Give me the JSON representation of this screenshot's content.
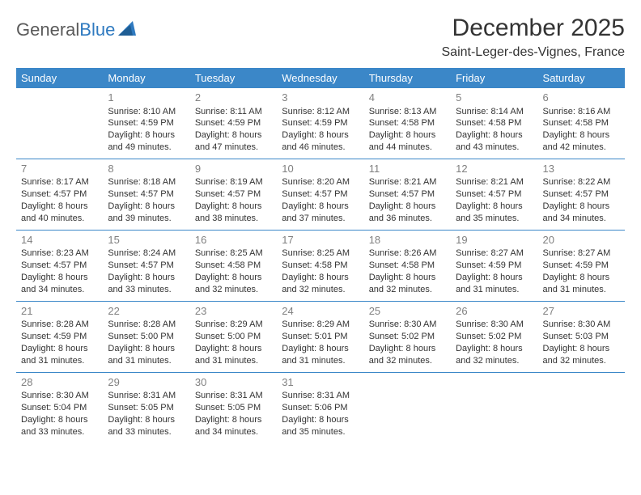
{
  "logo": {
    "textGray": "General",
    "textBlue": "Blue"
  },
  "title": "December 2025",
  "subtitle": "Saint-Leger-des-Vignes, France",
  "colors": {
    "headerBg": "#3b87c8",
    "headerText": "#ffffff",
    "rowDivider": "#3b87c8",
    "dayNum": "#808080",
    "bodyText": "#333333",
    "logoGray": "#5a5a5a",
    "logoBlue": "#2f7ac0",
    "background": "#ffffff"
  },
  "fonts": {
    "title_pt": 30,
    "subtitle_pt": 16,
    "weekday_pt": 13,
    "daynum_pt": 13,
    "cell_pt": 11
  },
  "weekdays": [
    "Sunday",
    "Monday",
    "Tuesday",
    "Wednesday",
    "Thursday",
    "Friday",
    "Saturday"
  ],
  "weeks": [
    [
      {},
      {
        "day": "1",
        "sunrise": "Sunrise: 8:10 AM",
        "sunset": "Sunset: 4:59 PM",
        "daylight": "Daylight: 8 hours and 49 minutes."
      },
      {
        "day": "2",
        "sunrise": "Sunrise: 8:11 AM",
        "sunset": "Sunset: 4:59 PM",
        "daylight": "Daylight: 8 hours and 47 minutes."
      },
      {
        "day": "3",
        "sunrise": "Sunrise: 8:12 AM",
        "sunset": "Sunset: 4:59 PM",
        "daylight": "Daylight: 8 hours and 46 minutes."
      },
      {
        "day": "4",
        "sunrise": "Sunrise: 8:13 AM",
        "sunset": "Sunset: 4:58 PM",
        "daylight": "Daylight: 8 hours and 44 minutes."
      },
      {
        "day": "5",
        "sunrise": "Sunrise: 8:14 AM",
        "sunset": "Sunset: 4:58 PM",
        "daylight": "Daylight: 8 hours and 43 minutes."
      },
      {
        "day": "6",
        "sunrise": "Sunrise: 8:16 AM",
        "sunset": "Sunset: 4:58 PM",
        "daylight": "Daylight: 8 hours and 42 minutes."
      }
    ],
    [
      {
        "day": "7",
        "sunrise": "Sunrise: 8:17 AM",
        "sunset": "Sunset: 4:57 PM",
        "daylight": "Daylight: 8 hours and 40 minutes."
      },
      {
        "day": "8",
        "sunrise": "Sunrise: 8:18 AM",
        "sunset": "Sunset: 4:57 PM",
        "daylight": "Daylight: 8 hours and 39 minutes."
      },
      {
        "day": "9",
        "sunrise": "Sunrise: 8:19 AM",
        "sunset": "Sunset: 4:57 PM",
        "daylight": "Daylight: 8 hours and 38 minutes."
      },
      {
        "day": "10",
        "sunrise": "Sunrise: 8:20 AM",
        "sunset": "Sunset: 4:57 PM",
        "daylight": "Daylight: 8 hours and 37 minutes."
      },
      {
        "day": "11",
        "sunrise": "Sunrise: 8:21 AM",
        "sunset": "Sunset: 4:57 PM",
        "daylight": "Daylight: 8 hours and 36 minutes."
      },
      {
        "day": "12",
        "sunrise": "Sunrise: 8:21 AM",
        "sunset": "Sunset: 4:57 PM",
        "daylight": "Daylight: 8 hours and 35 minutes."
      },
      {
        "day": "13",
        "sunrise": "Sunrise: 8:22 AM",
        "sunset": "Sunset: 4:57 PM",
        "daylight": "Daylight: 8 hours and 34 minutes."
      }
    ],
    [
      {
        "day": "14",
        "sunrise": "Sunrise: 8:23 AM",
        "sunset": "Sunset: 4:57 PM",
        "daylight": "Daylight: 8 hours and 34 minutes."
      },
      {
        "day": "15",
        "sunrise": "Sunrise: 8:24 AM",
        "sunset": "Sunset: 4:57 PM",
        "daylight": "Daylight: 8 hours and 33 minutes."
      },
      {
        "day": "16",
        "sunrise": "Sunrise: 8:25 AM",
        "sunset": "Sunset: 4:58 PM",
        "daylight": "Daylight: 8 hours and 32 minutes."
      },
      {
        "day": "17",
        "sunrise": "Sunrise: 8:25 AM",
        "sunset": "Sunset: 4:58 PM",
        "daylight": "Daylight: 8 hours and 32 minutes."
      },
      {
        "day": "18",
        "sunrise": "Sunrise: 8:26 AM",
        "sunset": "Sunset: 4:58 PM",
        "daylight": "Daylight: 8 hours and 32 minutes."
      },
      {
        "day": "19",
        "sunrise": "Sunrise: 8:27 AM",
        "sunset": "Sunset: 4:59 PM",
        "daylight": "Daylight: 8 hours and 31 minutes."
      },
      {
        "day": "20",
        "sunrise": "Sunrise: 8:27 AM",
        "sunset": "Sunset: 4:59 PM",
        "daylight": "Daylight: 8 hours and 31 minutes."
      }
    ],
    [
      {
        "day": "21",
        "sunrise": "Sunrise: 8:28 AM",
        "sunset": "Sunset: 4:59 PM",
        "daylight": "Daylight: 8 hours and 31 minutes."
      },
      {
        "day": "22",
        "sunrise": "Sunrise: 8:28 AM",
        "sunset": "Sunset: 5:00 PM",
        "daylight": "Daylight: 8 hours and 31 minutes."
      },
      {
        "day": "23",
        "sunrise": "Sunrise: 8:29 AM",
        "sunset": "Sunset: 5:00 PM",
        "daylight": "Daylight: 8 hours and 31 minutes."
      },
      {
        "day": "24",
        "sunrise": "Sunrise: 8:29 AM",
        "sunset": "Sunset: 5:01 PM",
        "daylight": "Daylight: 8 hours and 31 minutes."
      },
      {
        "day": "25",
        "sunrise": "Sunrise: 8:30 AM",
        "sunset": "Sunset: 5:02 PM",
        "daylight": "Daylight: 8 hours and 32 minutes."
      },
      {
        "day": "26",
        "sunrise": "Sunrise: 8:30 AM",
        "sunset": "Sunset: 5:02 PM",
        "daylight": "Daylight: 8 hours and 32 minutes."
      },
      {
        "day": "27",
        "sunrise": "Sunrise: 8:30 AM",
        "sunset": "Sunset: 5:03 PM",
        "daylight": "Daylight: 8 hours and 32 minutes."
      }
    ],
    [
      {
        "day": "28",
        "sunrise": "Sunrise: 8:30 AM",
        "sunset": "Sunset: 5:04 PM",
        "daylight": "Daylight: 8 hours and 33 minutes."
      },
      {
        "day": "29",
        "sunrise": "Sunrise: 8:31 AM",
        "sunset": "Sunset: 5:05 PM",
        "daylight": "Daylight: 8 hours and 33 minutes."
      },
      {
        "day": "30",
        "sunrise": "Sunrise: 8:31 AM",
        "sunset": "Sunset: 5:05 PM",
        "daylight": "Daylight: 8 hours and 34 minutes."
      },
      {
        "day": "31",
        "sunrise": "Sunrise: 8:31 AM",
        "sunset": "Sunset: 5:06 PM",
        "daylight": "Daylight: 8 hours and 35 minutes."
      },
      {},
      {},
      {}
    ]
  ]
}
